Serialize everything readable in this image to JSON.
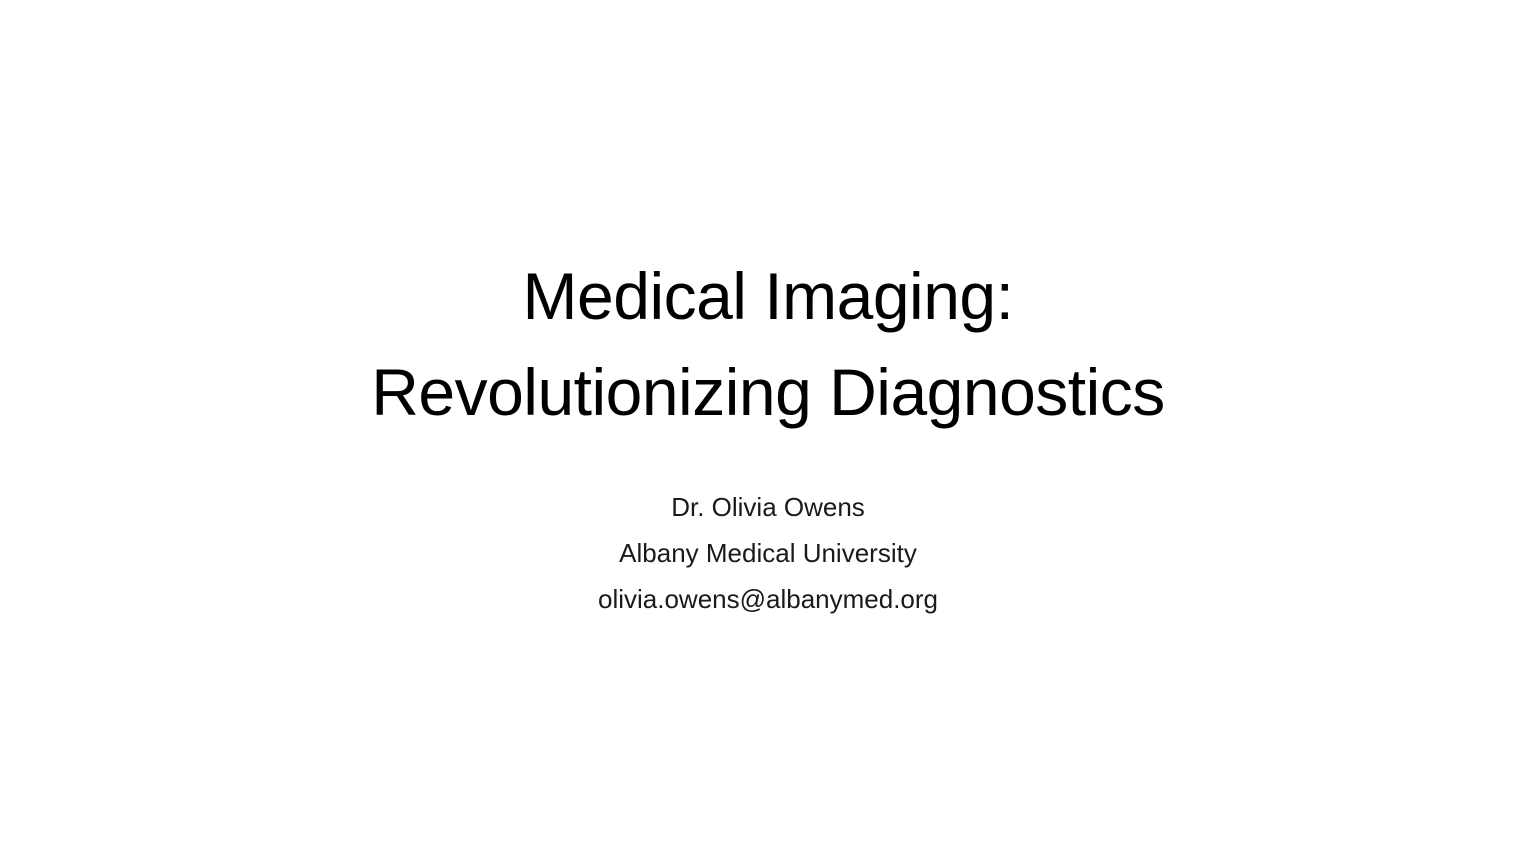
{
  "slide": {
    "title_lines": [
      "Medical Imaging:",
      "Revolutionizing Diagnostics"
    ],
    "subtitle_lines": [
      "Dr. Olivia Owens",
      "Albany Medical University",
      "olivia.owens@albanymed.org"
    ]
  }
}
